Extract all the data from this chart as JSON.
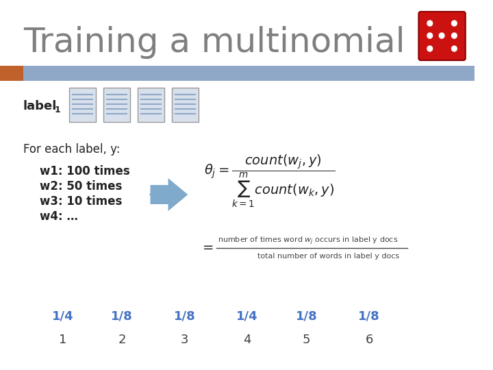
{
  "title": "Training a multinomial",
  "title_color": "#7F7F7F",
  "title_fontsize": 36,
  "bg_color": "#FFFFFF",
  "header_bar_color": "#8FA8C8",
  "header_bar_left_color": "#C0612B",
  "label_text": "label",
  "label_subscript": "1",
  "for_each_text": "For each label, y:",
  "word_counts": [
    "w1: 100 times",
    "w2: 50 times",
    "w3: 10 times",
    "w4: …"
  ],
  "fraction_numerator": "number of times word w",
  "fraction_denominator": "total number of words in label y docs",
  "fractions": [
    "1/4",
    "1/8",
    "1/8",
    "1/4",
    "1/8",
    "1/8"
  ],
  "indices": [
    "1",
    "2",
    "3",
    "4",
    "5",
    "6"
  ],
  "fraction_color": "#4472C4",
  "index_color": "#404040",
  "doc_icon_color": "#D0D8E8",
  "doc_line_color": "#8FA8C8",
  "arrow_color": "#7FAACC"
}
